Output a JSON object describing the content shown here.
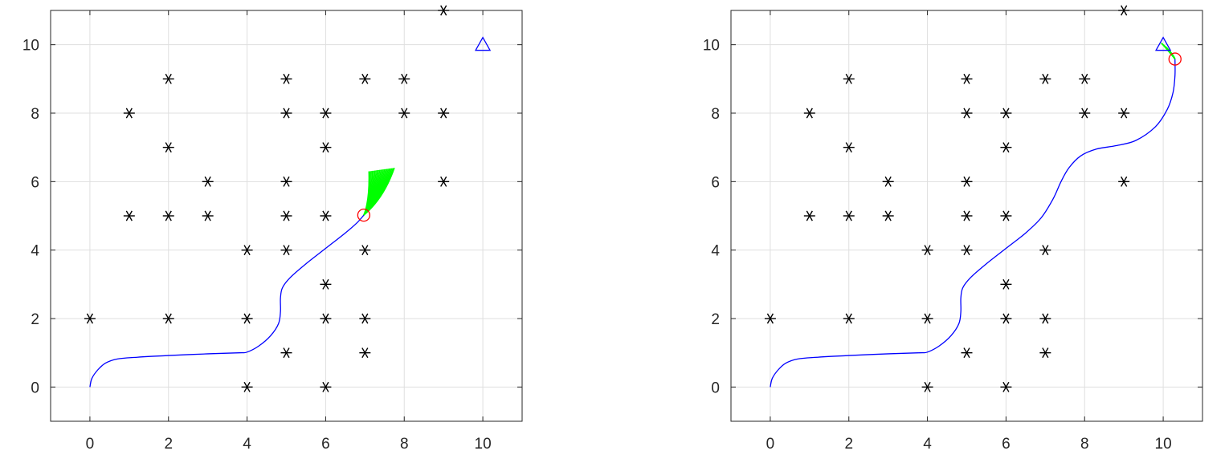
{
  "chart_data": [
    {
      "type": "scatter",
      "xlim": [
        -1,
        11
      ],
      "ylim": [
        -1,
        11
      ],
      "grid": true,
      "xticks": [
        0,
        2,
        4,
        6,
        8,
        10
      ],
      "yticks": [
        0,
        2,
        4,
        6,
        8,
        10
      ],
      "obstacles": [
        [
          0,
          2
        ],
        [
          1,
          5
        ],
        [
          1,
          8
        ],
        [
          2,
          2
        ],
        [
          2,
          5
        ],
        [
          2,
          7
        ],
        [
          2,
          9
        ],
        [
          3,
          5
        ],
        [
          3,
          6
        ],
        [
          4,
          0
        ],
        [
          4,
          2
        ],
        [
          4,
          4
        ],
        [
          5,
          1
        ],
        [
          5,
          4
        ],
        [
          5,
          5
        ],
        [
          5,
          6
        ],
        [
          5,
          8
        ],
        [
          5,
          9
        ],
        [
          6,
          0
        ],
        [
          6,
          2
        ],
        [
          6,
          3
        ],
        [
          6,
          5
        ],
        [
          6,
          7
        ],
        [
          6,
          8
        ],
        [
          7,
          1
        ],
        [
          7,
          2
        ],
        [
          7,
          4
        ],
        [
          7,
          9
        ],
        [
          8,
          8
        ],
        [
          8,
          9
        ],
        [
          9,
          6
        ],
        [
          9,
          8
        ],
        [
          9,
          11
        ]
      ],
      "goal": [
        10,
        10
      ],
      "robot": [
        6.97,
        5.02
      ],
      "trajectory": [
        [
          0,
          0
        ],
        [
          0.05,
          0.25
        ],
        [
          0.2,
          0.5
        ],
        [
          0.4,
          0.7
        ],
        [
          0.7,
          0.82
        ],
        [
          1.2,
          0.87
        ],
        [
          2,
          0.92
        ],
        [
          3,
          0.97
        ],
        [
          3.8,
          1.0
        ],
        [
          4,
          1.02
        ],
        [
          4.3,
          1.2
        ],
        [
          4.6,
          1.5
        ],
        [
          4.8,
          1.85
        ],
        [
          4.85,
          2.2
        ],
        [
          4.85,
          2.6
        ],
        [
          4.9,
          2.9
        ],
        [
          5.1,
          3.2
        ],
        [
          5.5,
          3.6
        ],
        [
          6,
          4.05
        ],
        [
          6.5,
          4.5
        ],
        [
          6.8,
          4.8
        ],
        [
          6.97,
          5.02
        ]
      ],
      "predicted_paths_tip_range": [
        [
          7.1,
          6.3
        ],
        [
          7.75,
          6.4
        ]
      ],
      "colors": {
        "trajectory": "#0000ff",
        "predicted": "#00ff00",
        "robot": "#ff0000",
        "goal": "#0000ff",
        "obstacle": "#000000"
      }
    },
    {
      "type": "scatter",
      "xlim": [
        -1,
        11
      ],
      "ylim": [
        -1,
        11
      ],
      "grid": true,
      "xticks": [
        0,
        2,
        4,
        6,
        8,
        10
      ],
      "yticks": [
        0,
        2,
        4,
        6,
        8,
        10
      ],
      "obstacles": [
        [
          0,
          2
        ],
        [
          1,
          5
        ],
        [
          1,
          8
        ],
        [
          2,
          2
        ],
        [
          2,
          5
        ],
        [
          2,
          7
        ],
        [
          2,
          9
        ],
        [
          3,
          5
        ],
        [
          3,
          6
        ],
        [
          4,
          0
        ],
        [
          4,
          2
        ],
        [
          4,
          4
        ],
        [
          5,
          1
        ],
        [
          5,
          4
        ],
        [
          5,
          5
        ],
        [
          5,
          6
        ],
        [
          5,
          8
        ],
        [
          5,
          9
        ],
        [
          6,
          0
        ],
        [
          6,
          2
        ],
        [
          6,
          3
        ],
        [
          6,
          5
        ],
        [
          6,
          7
        ],
        [
          6,
          8
        ],
        [
          7,
          1
        ],
        [
          7,
          2
        ],
        [
          7,
          4
        ],
        [
          7,
          9
        ],
        [
          8,
          8
        ],
        [
          8,
          9
        ],
        [
          9,
          6
        ],
        [
          9,
          8
        ],
        [
          9,
          11
        ]
      ],
      "goal": [
        10,
        10
      ],
      "robot": [
        10.3,
        9.58
      ],
      "trajectory": [
        [
          0,
          0
        ],
        [
          0.05,
          0.25
        ],
        [
          0.2,
          0.5
        ],
        [
          0.4,
          0.7
        ],
        [
          0.7,
          0.82
        ],
        [
          1.2,
          0.87
        ],
        [
          2,
          0.92
        ],
        [
          3,
          0.97
        ],
        [
          3.8,
          1.0
        ],
        [
          4,
          1.02
        ],
        [
          4.3,
          1.2
        ],
        [
          4.6,
          1.5
        ],
        [
          4.8,
          1.85
        ],
        [
          4.85,
          2.2
        ],
        [
          4.85,
          2.6
        ],
        [
          4.9,
          2.9
        ],
        [
          5.1,
          3.2
        ],
        [
          5.5,
          3.6
        ],
        [
          6,
          4.05
        ],
        [
          6.5,
          4.5
        ],
        [
          6.9,
          4.95
        ],
        [
          7.2,
          5.5
        ],
        [
          7.4,
          6.0
        ],
        [
          7.6,
          6.4
        ],
        [
          7.9,
          6.75
        ],
        [
          8.3,
          6.95
        ],
        [
          8.8,
          7.05
        ],
        [
          9.3,
          7.2
        ],
        [
          9.8,
          7.6
        ],
        [
          10.1,
          8.1
        ],
        [
          10.25,
          8.6
        ],
        [
          10.3,
          9.1
        ],
        [
          10.3,
          9.58
        ]
      ],
      "predicted_paths_tip_range": [
        [
          9.95,
          10.05
        ],
        [
          10.1,
          9.9
        ]
      ],
      "colors": {
        "trajectory": "#0000ff",
        "predicted": "#00ff00",
        "robot": "#ff0000",
        "goal": "#0000ff",
        "obstacle": "#000000"
      }
    }
  ]
}
